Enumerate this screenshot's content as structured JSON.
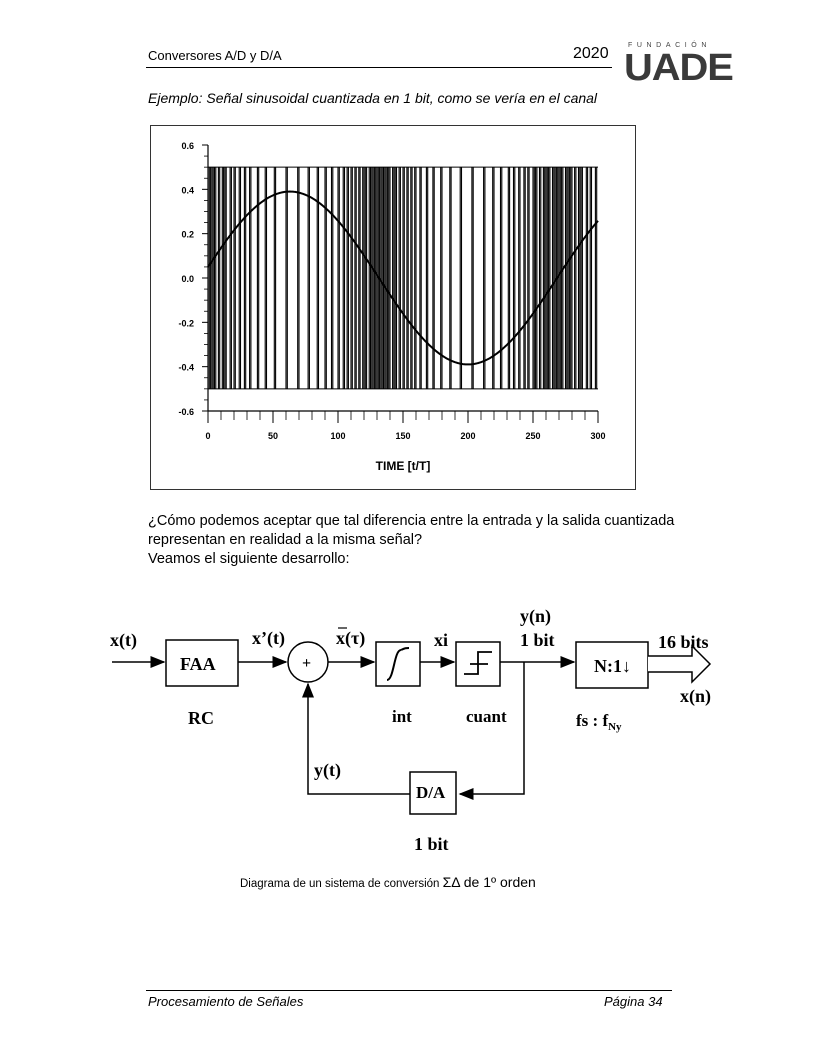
{
  "header": {
    "title": "Conversores A/D y D/A",
    "year": "2020",
    "logo_top": "FUNDACIÓN",
    "logo_main": "UADE"
  },
  "example_title": "Ejemplo: Señal sinusoidal cuantizada en 1 bit, como se vería en el canal",
  "chart_data": {
    "type": "line",
    "title": "",
    "xlabel": "TIME [t/T]",
    "ylabel": "",
    "xlim": [
      0,
      300
    ],
    "ylim": [
      -0.6,
      0.6
    ],
    "x_ticks": [
      0,
      50,
      100,
      150,
      200,
      250,
      300
    ],
    "y_ticks": [
      "0.6",
      "0.4",
      "0.2",
      "0.0",
      "-0.2",
      "-0.4",
      "-0.6"
    ],
    "grid": false,
    "series": [
      {
        "name": "",
        "kind": "sinusoid",
        "amplitude": 0.39,
        "period": 274,
        "phase_peak_x": 63
      },
      {
        "name": "",
        "kind": "1-bit pulse train",
        "levels": [
          -0.5,
          0.5
        ]
      }
    ]
  },
  "paragraph": {
    "line1": "¿Cómo podemos aceptar que tal diferencia entre la entrada y la salida cuantizada",
    "line2": "representan en realidad a la misma señal?",
    "line3": "Veamos el siguiente desarrollo:"
  },
  "diagram": {
    "input": "x(t)",
    "faa": "FAA",
    "rc": "RC",
    "x_prime": "x’(t)",
    "sum": "+",
    "x_bar": "x(τ)",
    "xi": "xi",
    "int": "int",
    "cuant": "cuant",
    "yn": "y(n)",
    "one_bit_top": "1 bit",
    "decimator": "N:1↓",
    "bits16": "16 bits",
    "xn": "x(n)",
    "fs_label": "fs : f",
    "fs_sub": "Ny",
    "yt": "y(t)",
    "da": "D/A",
    "one_bit_bottom": "1 bit"
  },
  "caption": {
    "text": "Diagrama de un sistema de conversión ",
    "symbol": "ΣΔ",
    "suffix": " de 1º orden"
  },
  "footer": {
    "left": "Procesamiento de Señales",
    "right": "Página 34"
  }
}
